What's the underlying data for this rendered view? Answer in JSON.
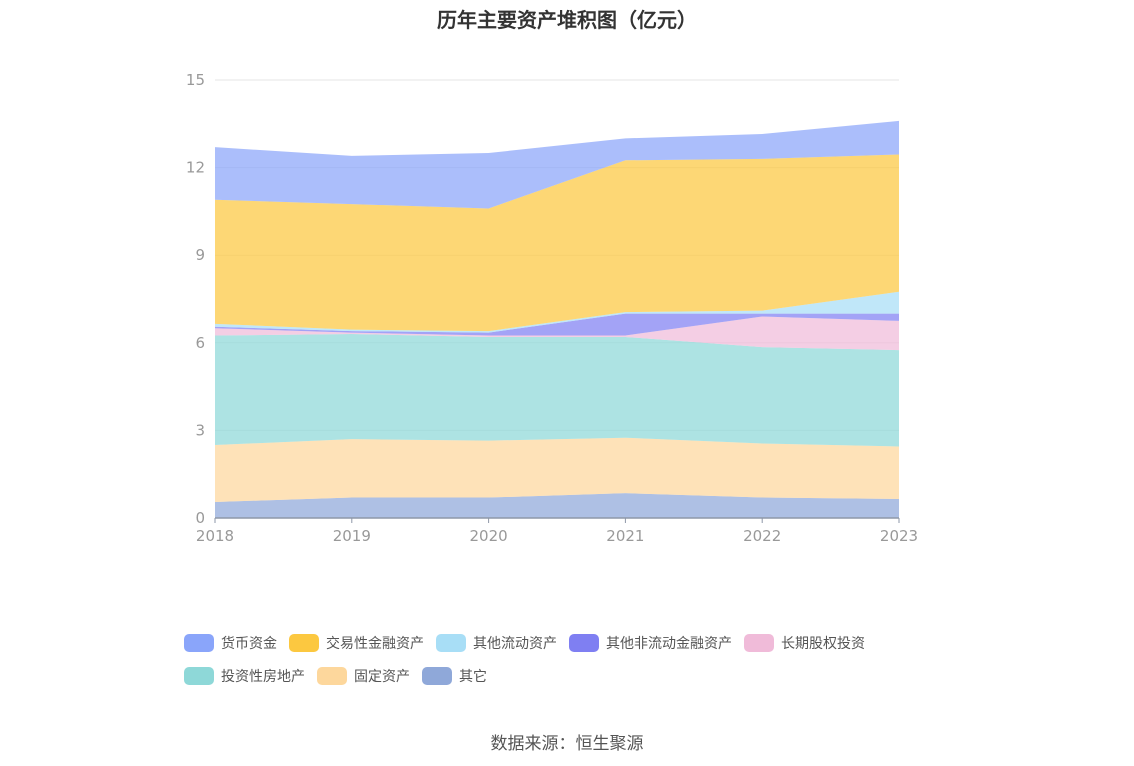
{
  "chart_data": {
    "type": "area",
    "stacked": true,
    "title": "历年主要资产堆积图（亿元）",
    "x": [
      "2018",
      "2019",
      "2020",
      "2021",
      "2022",
      "2023"
    ],
    "ylim": [
      0,
      15
    ],
    "yticks": [
      0,
      3,
      6,
      9,
      12,
      15
    ],
    "grid": true,
    "legend_position": "bottom",
    "series": [
      {
        "name": "其它",
        "color": "#8fa8d9",
        "values": [
          0.55,
          0.7,
          0.7,
          0.85,
          0.7,
          0.65
        ]
      },
      {
        "name": "固定资产",
        "color": "#fdd79c",
        "values": [
          1.95,
          2.0,
          1.95,
          1.9,
          1.85,
          1.8
        ]
      },
      {
        "name": "投资性房地产",
        "color": "#8ed8d8",
        "values": [
          3.75,
          3.6,
          3.55,
          3.45,
          3.3,
          3.3
        ]
      },
      {
        "name": "长期股权投资",
        "color": "#f0bbd9",
        "values": [
          0.25,
          0.05,
          0.05,
          0.05,
          1.05,
          1.0
        ]
      },
      {
        "name": "其他非流动金融资产",
        "color": "#7f7ff2",
        "values": [
          0.05,
          0.05,
          0.1,
          0.75,
          0.1,
          0.25
        ]
      },
      {
        "name": "其他流动资产",
        "color": "#a8def6",
        "values": [
          0.1,
          0.05,
          0.05,
          0.05,
          0.1,
          0.75
        ]
      },
      {
        "name": "交易性金融资产",
        "color": "#fcc840",
        "values": [
          4.25,
          4.3,
          4.2,
          5.2,
          5.2,
          4.7
        ]
      },
      {
        "name": "货币资金",
        "color": "#8aa5fa",
        "values": [
          1.8,
          1.65,
          1.9,
          0.75,
          0.85,
          1.15
        ]
      }
    ]
  },
  "legend_rows": [
    [
      "货币资金",
      "交易性金融资产",
      "其他流动资产",
      "其他非流动金融资产",
      "长期股权投资"
    ],
    [
      "投资性房地产",
      "固定资产",
      "其它"
    ]
  ],
  "source": "数据来源：恒生聚源"
}
